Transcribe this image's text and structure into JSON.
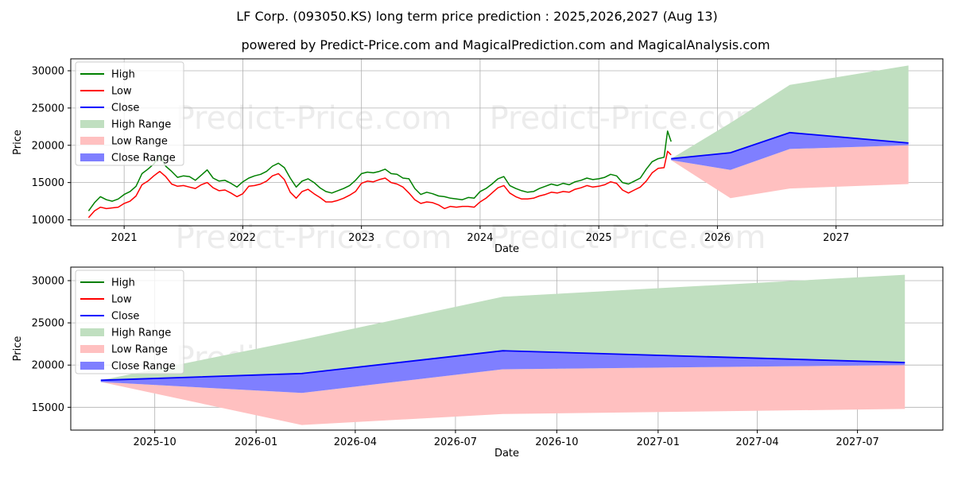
{
  "title": "LF Corp. (093050.KS) long term price prediction : 2025,2026,2027 (Aug 13)",
  "subtitle": "powered by Predict-Price.com and MagicalPrediction.com and MagicalAnalysis.com",
  "watermark": "Predict-Price.com",
  "colors": {
    "high": "#008000",
    "low": "#ff0000",
    "close": "#0000ff",
    "high_range": "#c0dfc0",
    "low_range": "#ffc0c0",
    "close_range": "#7f7fff"
  },
  "chart_data": [
    {
      "type": "line",
      "title": "LF Corp. (093050.KS) long term price prediction : 2025,2026,2027 (Aug 13)",
      "xlabel": "Date",
      "ylabel": "Price",
      "xlim": [
        2020.55,
        2027.9
      ],
      "ylim": [
        9200,
        31600
      ],
      "x_ticks": [
        {
          "label": "2021",
          "value": 2021.0
        },
        {
          "label": "2022",
          "value": 2022.0
        },
        {
          "label": "2023",
          "value": 2023.0
        },
        {
          "label": "2024",
          "value": 2024.0
        },
        {
          "label": "2025",
          "value": 2025.0
        },
        {
          "label": "2026",
          "value": 2026.0
        },
        {
          "label": "2027",
          "value": 2027.0
        }
      ],
      "y_ticks": [
        {
          "label": "10000",
          "value": 10000
        },
        {
          "label": "15000",
          "value": 15000
        },
        {
          "label": "20000",
          "value": 20000
        },
        {
          "label": "25000",
          "value": 25000
        },
        {
          "label": "30000",
          "value": 30000
        }
      ],
      "grid": true,
      "legend": [
        "High",
        "Low",
        "Close",
        "High Range",
        "Low Range",
        "Close Range"
      ],
      "legend_position": "upper-left",
      "history": {
        "x": [
          2020.7,
          2020.75,
          2020.8,
          2020.85,
          2020.9,
          2020.95,
          2021.0,
          2021.05,
          2021.1,
          2021.15,
          2021.2,
          2021.25,
          2021.3,
          2021.35,
          2021.4,
          2021.45,
          2021.5,
          2021.55,
          2021.6,
          2021.65,
          2021.7,
          2021.75,
          2021.8,
          2021.85,
          2021.9,
          2021.95,
          2022.0,
          2022.05,
          2022.1,
          2022.15,
          2022.2,
          2022.25,
          2022.3,
          2022.35,
          2022.4,
          2022.45,
          2022.5,
          2022.55,
          2022.6,
          2022.65,
          2022.7,
          2022.75,
          2022.8,
          2022.85,
          2022.9,
          2022.95,
          2023.0,
          2023.05,
          2023.1,
          2023.15,
          2023.2,
          2023.25,
          2023.3,
          2023.35,
          2023.4,
          2023.45,
          2023.5,
          2023.55,
          2023.6,
          2023.65,
          2023.7,
          2023.75,
          2023.8,
          2023.85,
          2023.9,
          2023.95,
          2024.0,
          2024.05,
          2024.1,
          2024.15,
          2024.2,
          2024.25,
          2024.3,
          2024.35,
          2024.4,
          2024.45,
          2024.5,
          2024.55,
          2024.6,
          2024.65,
          2024.7,
          2024.75,
          2024.8,
          2024.85,
          2024.9,
          2024.95,
          2025.0,
          2025.05,
          2025.1,
          2025.15,
          2025.2,
          2025.25,
          2025.3,
          2025.35,
          2025.4,
          2025.45,
          2025.5,
          2025.55,
          2025.58,
          2025.61
        ],
        "high": [
          11200,
          12300,
          13100,
          12700,
          12500,
          12800,
          13400,
          13800,
          14500,
          16200,
          16800,
          17500,
          18600,
          17200,
          16500,
          15700,
          15900,
          15800,
          15300,
          16000,
          16700,
          15600,
          15200,
          15300,
          14900,
          14400,
          15100,
          15600,
          15900,
          16100,
          16500,
          17200,
          17600,
          17000,
          15600,
          14400,
          15200,
          15500,
          15000,
          14300,
          13800,
          13600,
          13900,
          14200,
          14600,
          15300,
          16200,
          16400,
          16300,
          16500,
          16800,
          16200,
          16100,
          15600,
          15500,
          14200,
          13400,
          13700,
          13500,
          13200,
          13100,
          12900,
          12800,
          12700,
          13000,
          12900,
          13800,
          14200,
          14800,
          15500,
          15800,
          14600,
          14200,
          13900,
          13700,
          13800,
          14200,
          14500,
          14800,
          14600,
          14900,
          14700,
          15100,
          15300,
          15600,
          15400,
          15500,
          15700,
          16100,
          15900,
          15000,
          14800,
          15200,
          15600,
          16800,
          17800,
          18200,
          18400,
          21900,
          20500
        ],
        "low": [
          10300,
          11200,
          11700,
          11500,
          11600,
          11700,
          12200,
          12500,
          13200,
          14700,
          15200,
          15900,
          16500,
          15800,
          14800,
          14500,
          14600,
          14400,
          14200,
          14700,
          15000,
          14300,
          13900,
          14000,
          13600,
          13100,
          13500,
          14500,
          14600,
          14800,
          15200,
          15900,
          16200,
          15400,
          13700,
          12900,
          13800,
          14100,
          13500,
          13000,
          12400,
          12400,
          12600,
          12900,
          13300,
          13800,
          14900,
          15200,
          15100,
          15400,
          15600,
          15000,
          14800,
          14400,
          13600,
          12700,
          12200,
          12400,
          12300,
          12000,
          11500,
          11800,
          11700,
          11800,
          11800,
          11700,
          12400,
          12900,
          13600,
          14300,
          14600,
          13600,
          13100,
          12800,
          12800,
          12900,
          13200,
          13400,
          13700,
          13600,
          13800,
          13700,
          14100,
          14300,
          14600,
          14400,
          14500,
          14700,
          15100,
          14900,
          14000,
          13600,
          14000,
          14400,
          15200,
          16300,
          16900,
          17000,
          19200,
          18700
        ]
      },
      "forecast": {
        "x": [
          2025.61,
          2026.11,
          2026.61,
          2027.61
        ],
        "close": [
          18200,
          19000,
          21700,
          20300
        ],
        "close_range_upper": [
          18200,
          19000,
          21700,
          20300
        ],
        "close_range_lower": [
          18000,
          16700,
          19500,
          20000
        ],
        "high_range_upper": [
          18200,
          23000,
          28100,
          30700
        ],
        "low_range_lower": [
          18000,
          12900,
          14200,
          14800
        ]
      }
    },
    {
      "type": "line",
      "title": "",
      "xlabel": "Date",
      "ylabel": "Price",
      "xlim": [
        2025.5389,
        2027.7083
      ],
      "ylim": [
        12300,
        31600
      ],
      "x_ticks": [
        {
          "label": "2025-10",
          "value": 2025.7479
        },
        {
          "label": "2026-01",
          "value": 2026.0
        },
        {
          "label": "2026-04",
          "value": 2026.2466
        },
        {
          "label": "2026-07",
          "value": 2026.4959
        },
        {
          "label": "2026-10",
          "value": 2026.7479
        },
        {
          "label": "2027-01",
          "value": 2027.0
        },
        {
          "label": "2027-04",
          "value": 2027.2466
        },
        {
          "label": "2027-07",
          "value": 2027.4959
        }
      ],
      "y_ticks": [
        {
          "label": "15000",
          "value": 15000
        },
        {
          "label": "20000",
          "value": 20000
        },
        {
          "label": "25000",
          "value": 25000
        },
        {
          "label": "30000",
          "value": 30000
        }
      ],
      "grid": true,
      "legend": [
        "High",
        "Low",
        "Close",
        "High Range",
        "Low Range",
        "Close Range"
      ],
      "legend_position": "upper-left",
      "forecast": {
        "x": [
          2025.6137,
          2026.1137,
          2026.6137,
          2027.6137
        ],
        "close": [
          18200,
          19000,
          21700,
          20300
        ],
        "close_range_upper": [
          18200,
          19000,
          21700,
          20300
        ],
        "close_range_lower": [
          18000,
          16700,
          19500,
          20000
        ],
        "high_range_upper": [
          18200,
          23000,
          28100,
          30700
        ],
        "low_range_lower": [
          18000,
          12900,
          14200,
          14800
        ]
      }
    }
  ]
}
